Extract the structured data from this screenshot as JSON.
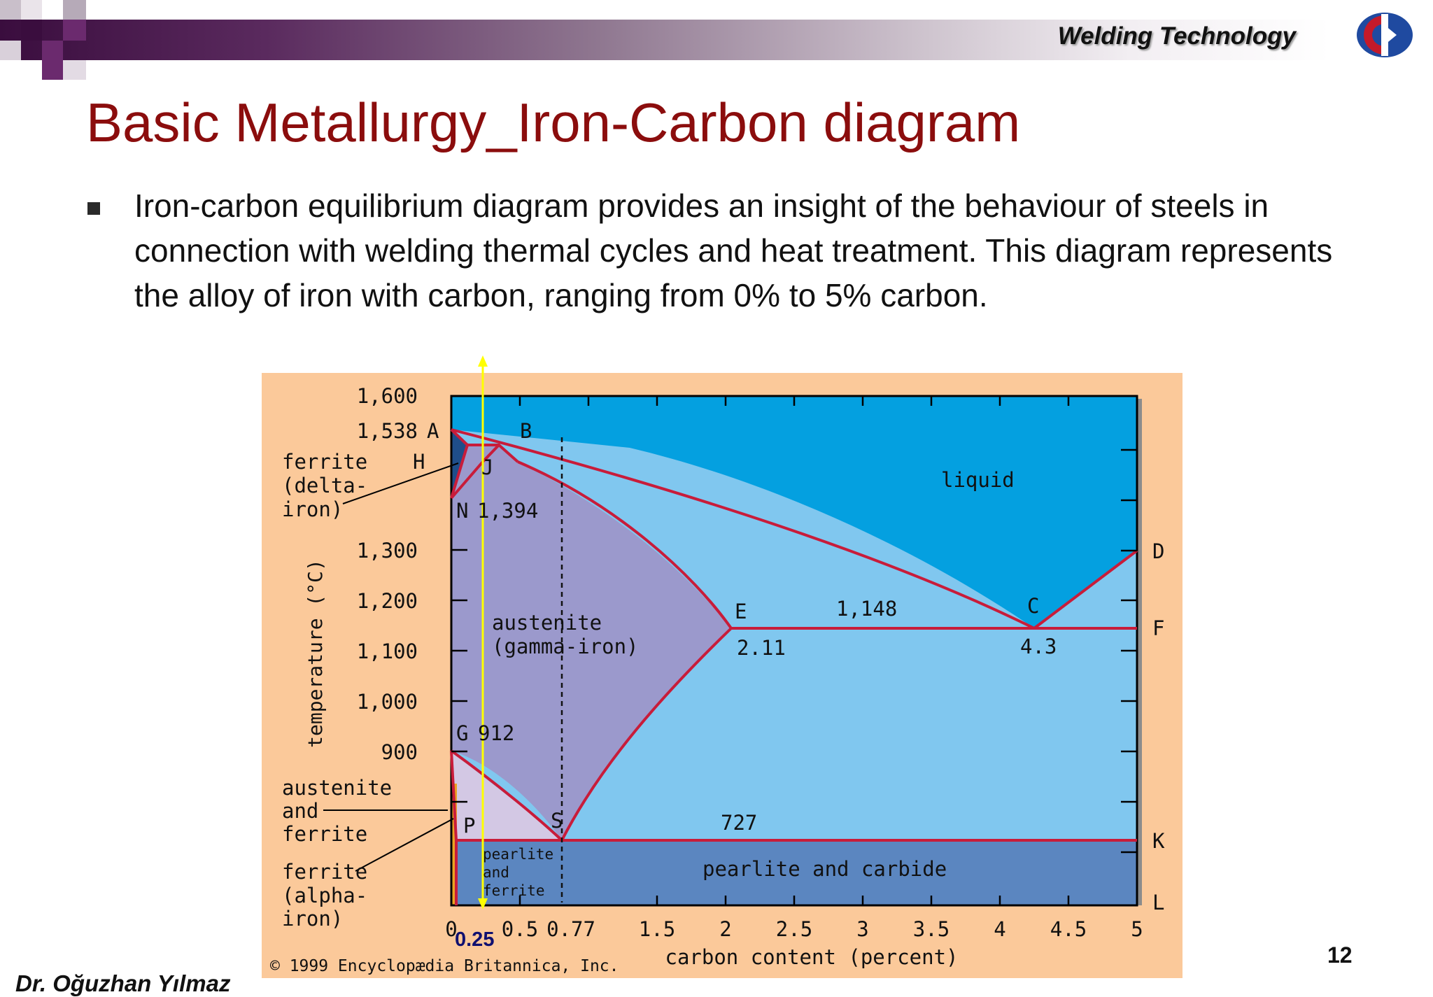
{
  "header": {
    "title": "Welding Technology",
    "colors": {
      "bar_dark": "#3a0d3e",
      "square_purple": "#6b2a6e",
      "title_red": "#8b0d0d"
    },
    "logo": "university-logo-icon"
  },
  "slide": {
    "title": "Basic Metallurgy_Iron-Carbon diagram",
    "bullets": [
      "Iron-carbon equilibrium diagram provides an insight of the behaviour of steels in connection with welding thermal cycles and heat treatment. This diagram represents the alloy of iron with carbon, ranging from 0% to 5% carbon."
    ],
    "bullet_icon": "square-bullet-icon"
  },
  "diagram": {
    "y_axis_label": "temperature (°C)",
    "x_axis_label": "carbon content (percent)",
    "y_ticks": [
      "1,600",
      "1,538",
      "1,300",
      "1,200",
      "1,100",
      "1,000",
      "900"
    ],
    "x_ticks": [
      "0",
      "0.5",
      "0.77",
      "1.5",
      "2",
      "2.5",
      "3",
      "3.5",
      "4",
      "4.5",
      "5"
    ],
    "points": {
      "A": "A",
      "B": "B",
      "H": "H",
      "J": "J",
      "N": "N",
      "E": "E",
      "C": "C",
      "D": "D",
      "F": "F",
      "G": "G",
      "P": "P",
      "S": "S",
      "K": "K",
      "L": "L"
    },
    "values": {
      "n_temp": "1,394",
      "eutectic_temp": "1,148",
      "e_carbon": "2.11",
      "c_carbon": "4.3",
      "g_temp": "912",
      "eutectoid_temp": "727"
    },
    "regions": {
      "liquid": "liquid",
      "austenite_1": "austenite",
      "austenite_2": "(gamma-iron)",
      "pearlite_carbide": "pearlite and carbide",
      "pearlite_ferrite": [
        "pearlite",
        "and",
        "ferrite"
      ]
    },
    "side_labels": {
      "delta": [
        "ferrite",
        "(delta-",
        "iron)"
      ],
      "aust_ferrite": [
        "austenite",
        "and",
        "ferrite"
      ],
      "alpha": [
        "ferrite",
        "(alpha-",
        "iron)"
      ]
    },
    "marker": "0.25",
    "copyright": "© 1999 Encyclopædia Britannica, Inc.",
    "colors": {
      "liquid": "#04a0e0",
      "liquid_austenite": "#80c7ef",
      "austenite": "#9b99cc",
      "pearlite": "#5b86c0",
      "alpha_ferrite_austenite": "#d3c8e4",
      "frame": "#fbc99a",
      "lines": "#c81c3a",
      "marker": "#ffff00"
    }
  },
  "footer": {
    "author": "Dr. Oğuzhan Yılmaz",
    "page": "12"
  }
}
